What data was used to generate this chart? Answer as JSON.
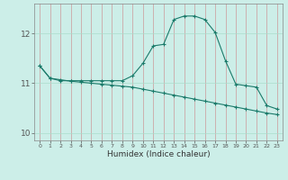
{
  "xlabel": "Humidex (Indice chaleur)",
  "background_color": "#cceee8",
  "grid_color_h": "#aaddcc",
  "grid_color_v": "#cc9999",
  "line_color": "#1a7a6a",
  "xlim": [
    -0.5,
    23.5
  ],
  "ylim": [
    9.85,
    12.6
  ],
  "yticks": [
    10,
    11,
    12
  ],
  "xticks": [
    0,
    1,
    2,
    3,
    4,
    5,
    6,
    7,
    8,
    9,
    10,
    11,
    12,
    13,
    14,
    15,
    16,
    17,
    18,
    19,
    20,
    21,
    22,
    23
  ],
  "line1_x": [
    0,
    1,
    2,
    3,
    4,
    5,
    6,
    7,
    8,
    9,
    10,
    11,
    12,
    13,
    14,
    15,
    16,
    17,
    18,
    19,
    20,
    21,
    22,
    23
  ],
  "line1_y": [
    11.35,
    11.1,
    11.05,
    11.05,
    11.05,
    11.05,
    11.05,
    11.05,
    11.05,
    11.15,
    11.4,
    11.75,
    11.78,
    12.28,
    12.35,
    12.35,
    12.28,
    12.02,
    11.45,
    10.98,
    10.95,
    10.92,
    10.55,
    10.48
  ],
  "line2_x": [
    0,
    1,
    2,
    3,
    4,
    5,
    6,
    7,
    8,
    9,
    10,
    11,
    12,
    13,
    14,
    15,
    16,
    17,
    18,
    19,
    20,
    21,
    22,
    23
  ],
  "line2_y": [
    11.35,
    11.1,
    11.07,
    11.04,
    11.02,
    11.0,
    10.98,
    10.96,
    10.94,
    10.92,
    10.88,
    10.84,
    10.8,
    10.76,
    10.72,
    10.68,
    10.64,
    10.6,
    10.56,
    10.52,
    10.48,
    10.44,
    10.4,
    10.37
  ]
}
